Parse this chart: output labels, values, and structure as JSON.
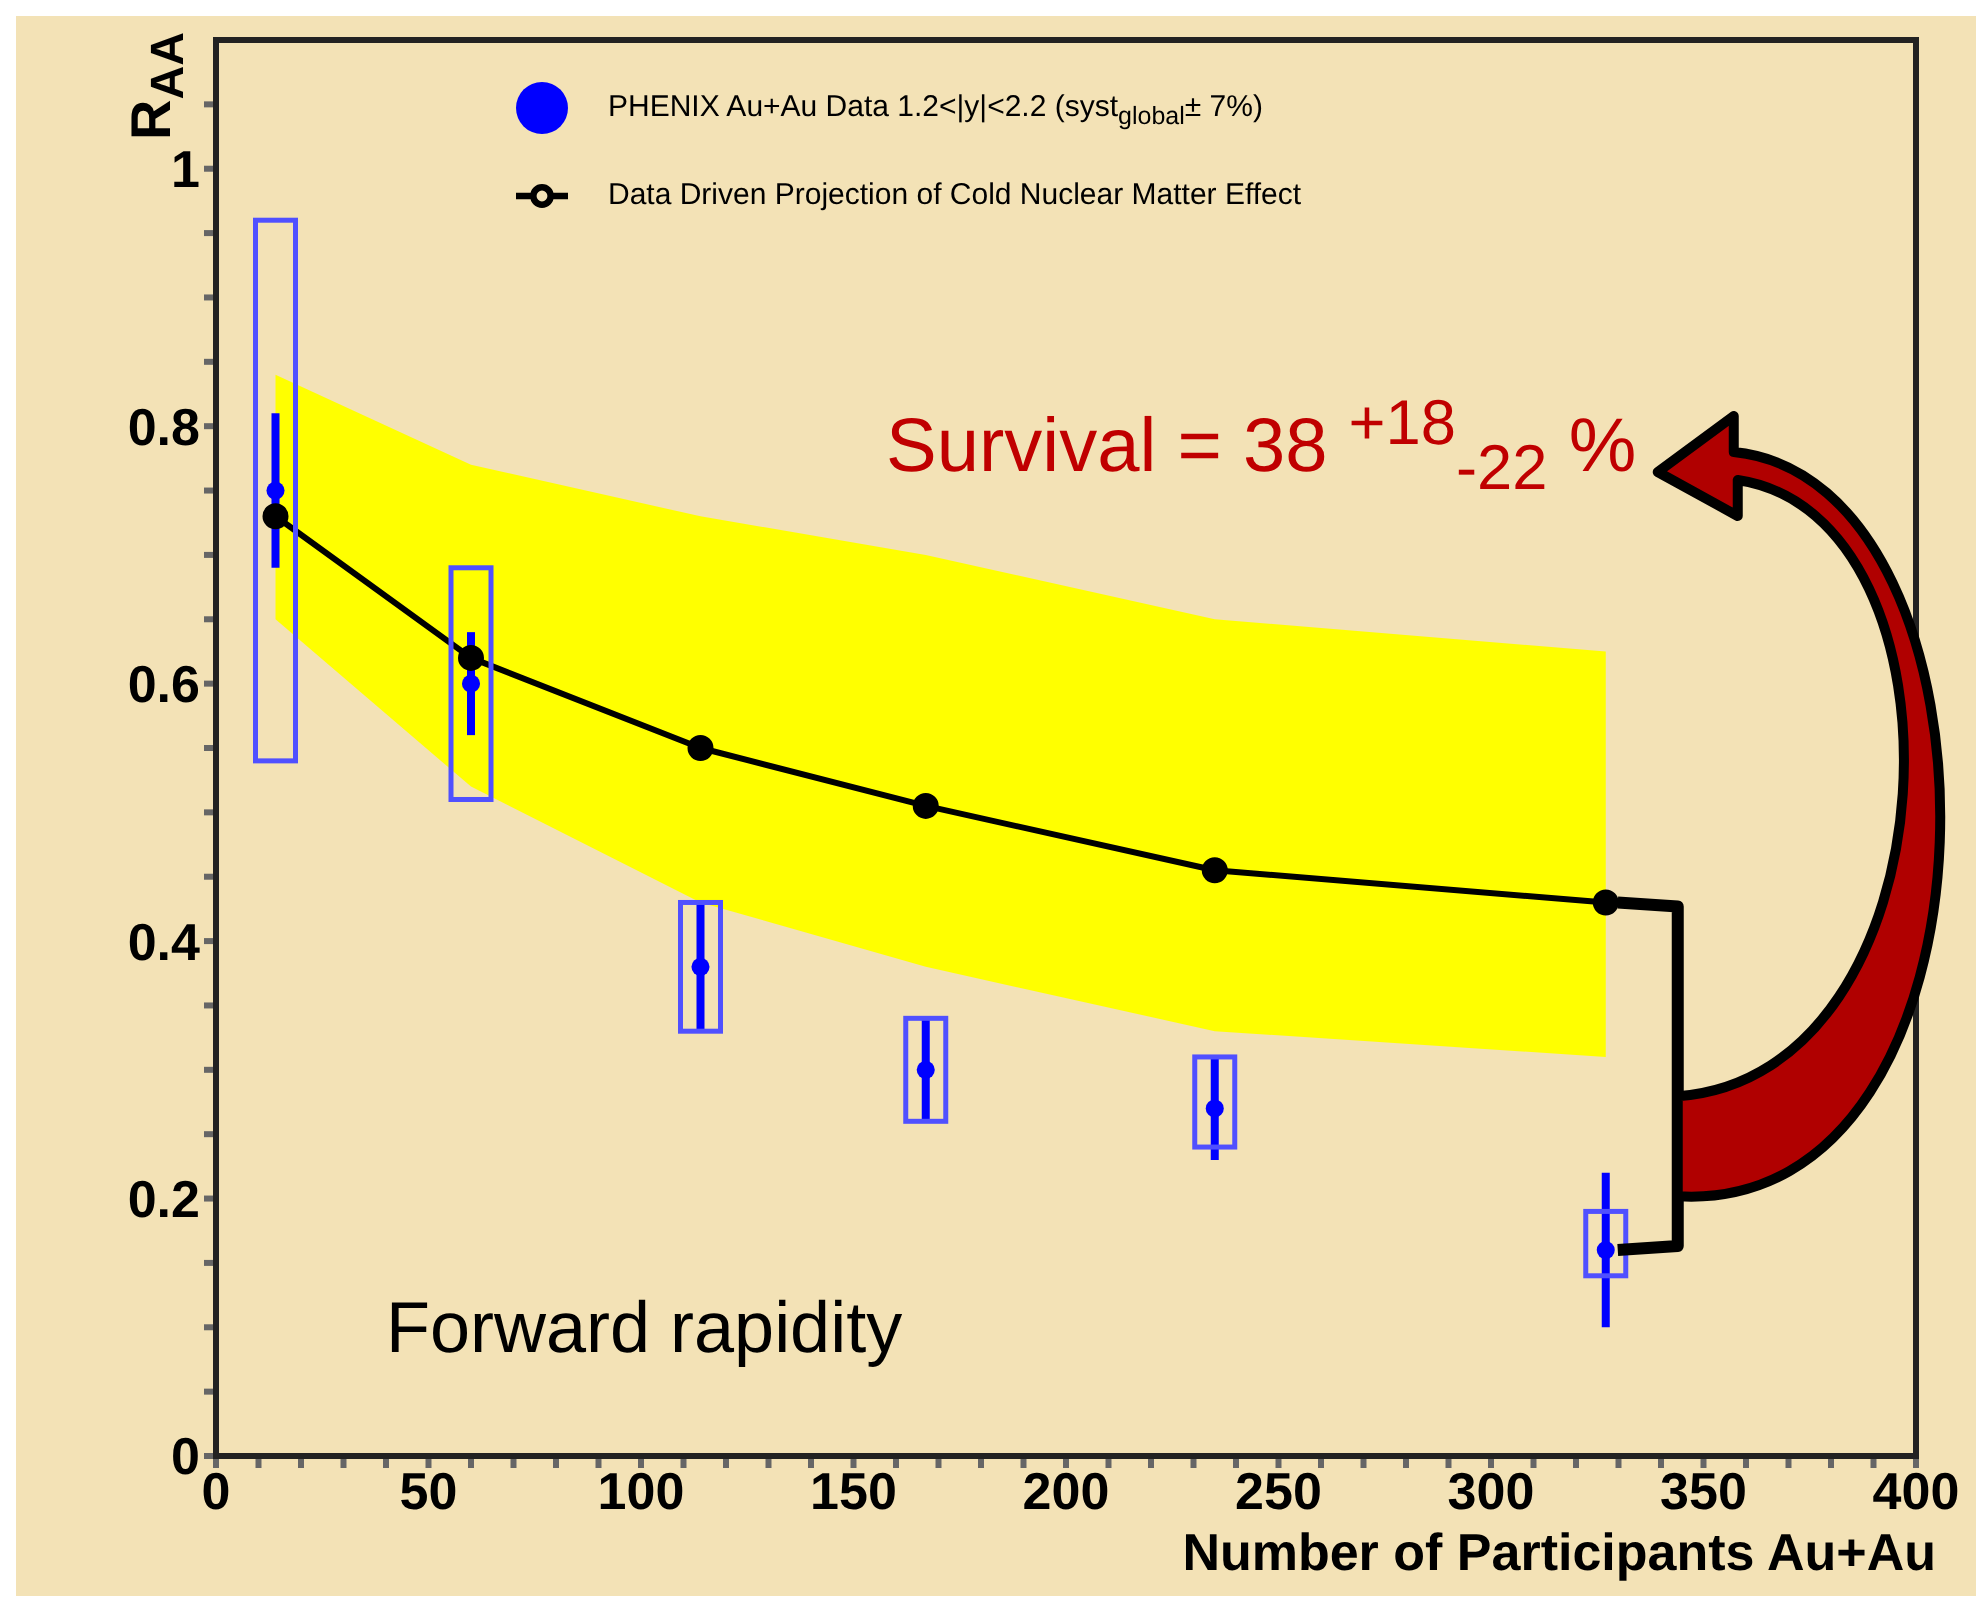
{
  "chart_data": {
    "type": "scatter",
    "xlabel": "Number of Participants Au+Au",
    "ylabel": "R$_{AA}$",
    "xlim": [
      0,
      400
    ],
    "ylim": [
      0,
      1.1
    ],
    "xticks": [
      0,
      {
        "value": 10,
        "label": null
      },
      {
        "value": 20,
        "label": null
      },
      {
        "value": 30,
        "label": null
      },
      {
        "value": 40,
        "label": null
      },
      50,
      {
        "value": 60,
        "label": null
      },
      {
        "value": 70,
        "label": null
      },
      {
        "value": 80,
        "label": null
      },
      {
        "value": 90,
        "label": null
      },
      100,
      {
        "value": 110,
        "label": null
      },
      {
        "value": 120,
        "label": null
      },
      {
        "value": 130,
        "label": null
      },
      {
        "value": 140,
        "label": null
      },
      150,
      {
        "value": 160,
        "label": null
      },
      {
        "value": 170,
        "label": null
      },
      {
        "value": 180,
        "label": null
      },
      {
        "value": 190,
        "label": null
      },
      200,
      {
        "value": 210,
        "label": null
      },
      {
        "value": 220,
        "label": null
      },
      {
        "value": 230,
        "label": null
      },
      {
        "value": 240,
        "label": null
      },
      250,
      {
        "value": 260,
        "label": null
      },
      {
        "value": 270,
        "label": null
      },
      {
        "value": 280,
        "label": null
      },
      {
        "value": 290,
        "label": null
      },
      300,
      {
        "value": 310,
        "label": null
      },
      {
        "value": 320,
        "label": null
      },
      {
        "value": 330,
        "label": null
      },
      {
        "value": 340,
        "label": null
      },
      350,
      {
        "value": 360,
        "label": null
      },
      {
        "value": 370,
        "label": null
      },
      {
        "value": 380,
        "label": null
      },
      {
        "value": 390,
        "label": null
      },
      400
    ],
    "yticks": [
      0,
      {
        "value": 0.05,
        "label": null
      },
      {
        "value": 0.1,
        "label": null
      },
      {
        "value": 0.15,
        "label": null
      },
      0.2,
      {
        "value": 0.25,
        "label": null
      },
      {
        "value": 0.3,
        "label": null
      },
      {
        "value": 0.35,
        "label": null
      },
      0.4,
      {
        "value": 0.45,
        "label": null
      },
      {
        "value": 0.5,
        "label": null
      },
      {
        "value": 0.55,
        "label": null
      },
      0.6,
      {
        "value": 0.65,
        "label": null
      },
      {
        "value": 0.7,
        "label": null
      },
      {
        "value": 0.75,
        "label": null
      },
      0.8,
      {
        "value": 0.85,
        "label": null
      },
      {
        "value": 0.9,
        "label": null
      },
      {
        "value": 0.95,
        "label": null
      },
      1,
      {
        "value": 1.05,
        "label": null
      }
    ],
    "legend": "top",
    "series": [
      {
        "name": "PHENIX Au+Au Data 1.2<|y|<2.2 (syst$_{global}$± 7%)",
        "color": "#0000ff",
        "marker": "circle",
        "x": [
          14,
          60,
          114,
          167,
          235,
          327
        ],
        "values": [
          0.75,
          0.6,
          0.38,
          0.3,
          0.27,
          0.16
        ],
        "errors": [
          [
            0.69,
            0.81
          ],
          [
            0.56,
            0.64
          ],
          [
            0.33,
            0.43
          ],
          [
            0.26,
            0.34
          ],
          [
            0.23,
            0.31
          ],
          [
            0.1,
            0.22
          ]
        ]
      },
      {
        "type": "line",
        "name": "Data Driven Projection of Cold Nuclear Matter Effect",
        "color": "#000000",
        "marker": "circle",
        "x": [
          14,
          60,
          114,
          167,
          235,
          327
        ],
        "values": [
          0.73,
          0.62,
          0.55,
          0.505,
          0.455,
          0.43
        ],
        "lower": [
          0.65,
          0.52,
          0.43,
          0.38,
          0.33,
          0.31
        ],
        "upper": [
          0.84,
          0.77,
          0.73,
          0.7,
          0.65,
          0.625
        ]
      },
      {
        "type": "bar",
        "color": "#5050ff",
        "x": [
          14,
          60,
          114,
          167,
          235,
          327
        ],
        "base": [
          0.54,
          0.51,
          0.33,
          0.26,
          0.24,
          0.14
        ],
        "values": [
          0.42,
          0.18,
          0.1,
          0.08,
          0.07,
          0.05
        ]
      }
    ],
    "annotations": [
      "Survival = 38 $^{+18}$$_{-22}$ %",
      "Forward rapidity"
    ]
  }
}
